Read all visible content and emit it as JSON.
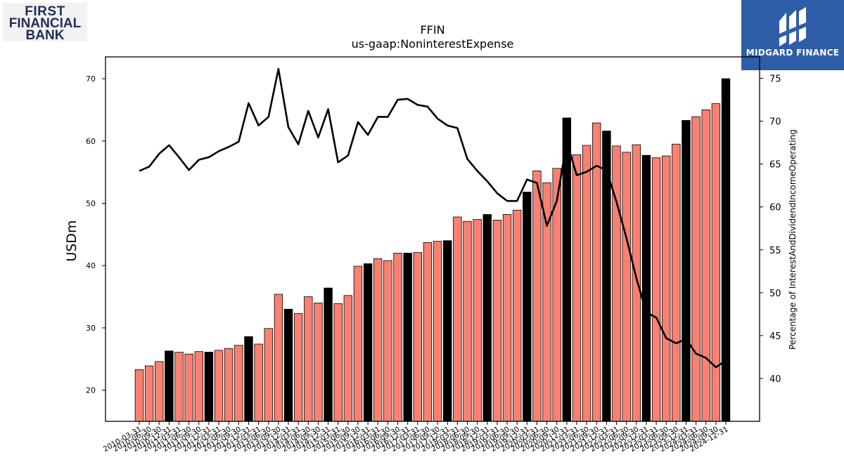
{
  "logos": {
    "left": {
      "line1": "FIRST",
      "line2": "FINANCIAL",
      "line3": "BANK"
    },
    "right": {
      "name": "MIDGARD FINANCE"
    }
  },
  "colors": {
    "bar_default": "#fa8072",
    "bar_highlight": "#000000",
    "line": "#000000",
    "logo_left_text": "#1f2d5c",
    "logo_right_bg": "#2f5ea8"
  },
  "chart_data": {
    "type": "bar",
    "title": "FFIN",
    "subtitle": "us-gaap:NoninterestExpense",
    "ylabel": "USDm",
    "y2label": "Percentage of InterestAndDividendIncomeOperating",
    "ylim": [
      15,
      73.5
    ],
    "y2lim": [
      35,
      77.5
    ],
    "yticks": [
      20,
      30,
      40,
      50,
      60,
      70
    ],
    "y2ticks": [
      40,
      45,
      50,
      55,
      60,
      65,
      70,
      75
    ],
    "grid": false,
    "categories": [
      "2010-03-31",
      "2010-06-30",
      "2010-09-30",
      "2010-12-31",
      "2011-03-31",
      "2011-06-30",
      "2011-09-30",
      "2011-12-31",
      "2012-03-31",
      "2012-06-30",
      "2012-09-30",
      "2012-12-31",
      "2013-03-31",
      "2013-06-30",
      "2013-09-30",
      "2013-12-31",
      "2014-03-31",
      "2014-06-30",
      "2014-09-30",
      "2014-12-31",
      "2015-03-31",
      "2015-06-30",
      "2015-09-30",
      "2015-12-31",
      "2016-03-31",
      "2016-06-30",
      "2016-09-30",
      "2016-12-31",
      "2017-03-31",
      "2017-06-30",
      "2017-09-30",
      "2017-12-31",
      "2018-03-31",
      "2018-06-30",
      "2018-09-30",
      "2018-12-31",
      "2019-03-31",
      "2019-06-30",
      "2019-09-30",
      "2019-12-31",
      "2020-03-31",
      "2020-06-30",
      "2020-09-30",
      "2020-12-31",
      "2021-03-31",
      "2021-06-30",
      "2021-09-30",
      "2021-12-31",
      "2022-03-31",
      "2022-06-30",
      "2022-09-30",
      "2022-12-31",
      "2023-03-31",
      "2023-06-30",
      "2023-09-30",
      "2023-12-31",
      "2024-03-31",
      "2024-06-30",
      "2024-09-30",
      "2024-12-31"
    ],
    "series": [
      {
        "kind": "bar",
        "axis": "left",
        "values": [
          23.3,
          23.9,
          24.6,
          26.3,
          26.1,
          25.8,
          26.2,
          26.1,
          26.4,
          26.7,
          27.2,
          28.6,
          27.4,
          29.9,
          35.4,
          33.0,
          32.3,
          35.0,
          34.0,
          36.4,
          33.9,
          35.2,
          39.9,
          40.3,
          41.1,
          40.8,
          42.0,
          42.0,
          42.1,
          43.7,
          43.9,
          44.0,
          47.8,
          47.1,
          47.4,
          48.2,
          47.3,
          48.2,
          48.9,
          51.8,
          55.2,
          53.3,
          55.6,
          63.7,
          57.8,
          59.3,
          62.9,
          61.6,
          59.2,
          58.2,
          59.4,
          57.7,
          57.3,
          57.6,
          59.5,
          63.3,
          63.9,
          65.0,
          66.0,
          70.0
        ],
        "highlight": [
          false,
          false,
          false,
          true,
          false,
          false,
          false,
          true,
          false,
          false,
          false,
          true,
          false,
          false,
          false,
          true,
          false,
          false,
          false,
          true,
          false,
          false,
          false,
          true,
          false,
          false,
          false,
          true,
          false,
          false,
          false,
          true,
          false,
          false,
          false,
          true,
          false,
          false,
          false,
          true,
          false,
          false,
          false,
          true,
          false,
          false,
          false,
          true,
          false,
          false,
          false,
          true,
          false,
          false,
          false,
          true,
          false,
          false,
          false,
          true
        ]
      },
      {
        "kind": "line",
        "axis": "right",
        "values": [
          64.2,
          64.7,
          66.2,
          67.2,
          65.8,
          64.3,
          65.5,
          65.8,
          66.5,
          67.0,
          67.6,
          72.1,
          69.5,
          70.5,
          76.1,
          69.3,
          67.3,
          71.2,
          68.1,
          71.4,
          65.2,
          66.0,
          69.9,
          68.4,
          70.5,
          70.5,
          72.5,
          72.6,
          71.9,
          71.7,
          70.3,
          69.5,
          69.2,
          65.6,
          64.2,
          63.0,
          61.6,
          60.7,
          60.7,
          63.2,
          62.8,
          57.8,
          60.7,
          67.6,
          63.7,
          64.1,
          64.8,
          64.3,
          60.6,
          56.4,
          51.7,
          47.7,
          47.1,
          44.7,
          44.1,
          44.6,
          42.9,
          42.4,
          41.3,
          42.1
        ]
      }
    ]
  }
}
